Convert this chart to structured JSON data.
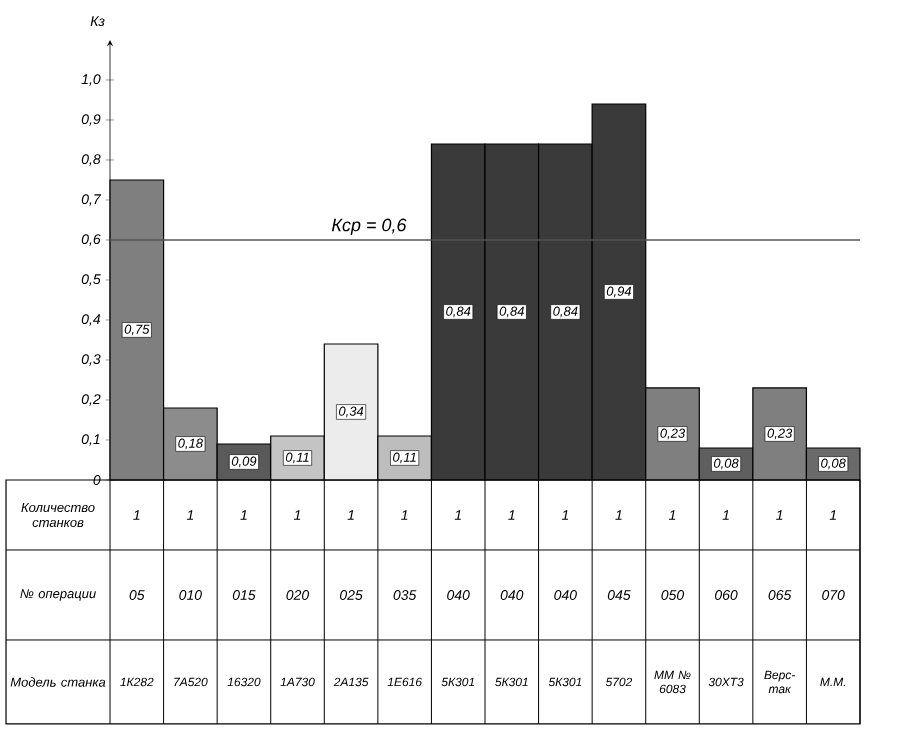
{
  "chart_data": {
    "type": "bar",
    "ylabel": "Кз",
    "categories": [
      "05",
      "010",
      "015",
      "020",
      "025",
      "035",
      "040",
      "040",
      "040",
      "045",
      "050",
      "060",
      "065",
      "070"
    ],
    "values": [
      0.75,
      0.18,
      0.09,
      0.11,
      0.34,
      0.11,
      0.84,
      0.84,
      0.84,
      0.94,
      0.23,
      0.08,
      0.23,
      0.08
    ],
    "colors": [
      "#7f7f7f",
      "#8c8c8c",
      "#5a5a5a",
      "#c4c4c4",
      "#ececec",
      "#bdbdbd",
      "#3a3a3a",
      "#3a3a3a",
      "#3a3a3a",
      "#3a3a3a",
      "#7f7f7f",
      "#5f5f5f",
      "#7f7f7f",
      "#6a6a6a"
    ],
    "value_labels": [
      "0,75",
      "0,18",
      "0,09",
      "0,11",
      "0,34",
      "0,11",
      "0,84",
      "0,84",
      "0,84",
      "0,94",
      "0,23",
      "0,08",
      "0,23",
      "0,08"
    ],
    "ylim": [
      0,
      1.1
    ],
    "yticks": [
      {
        "value": 0,
        "label": "0"
      },
      {
        "value": 0.1,
        "label": "0,1"
      },
      {
        "value": 0.2,
        "label": "0,2"
      },
      {
        "value": 0.3,
        "label": "0,3"
      },
      {
        "value": 0.4,
        "label": "0,4"
      },
      {
        "value": 0.5,
        "label": "0,5"
      },
      {
        "value": 0.6,
        "label": "0,6"
      },
      {
        "value": 0.7,
        "label": "0,7"
      },
      {
        "value": 0.8,
        "label": "0,8"
      },
      {
        "value": 0.9,
        "label": "0,9"
      },
      {
        "value": 1.0,
        "label": "1,0"
      }
    ],
    "ref_lines": [
      {
        "axis": "y",
        "value": 0.6,
        "label": "Кср = 0,6",
        "color": "#555555"
      }
    ],
    "annotations": [
      "Количество станков",
      "№ операции",
      "Модель станка",
      "1",
      "1",
      "1",
      "1",
      "1",
      "1",
      "1",
      "1",
      "1",
      "1",
      "1",
      "1",
      "1",
      "1",
      "1К282",
      "7А520",
      "16320",
      "1А730",
      "2А135",
      "1Е616",
      "5К301",
      "5К301",
      "5К301",
      "5702",
      "ММ № 6083",
      "30ХТ3",
      "Верс-так",
      "М.М."
    ]
  }
}
